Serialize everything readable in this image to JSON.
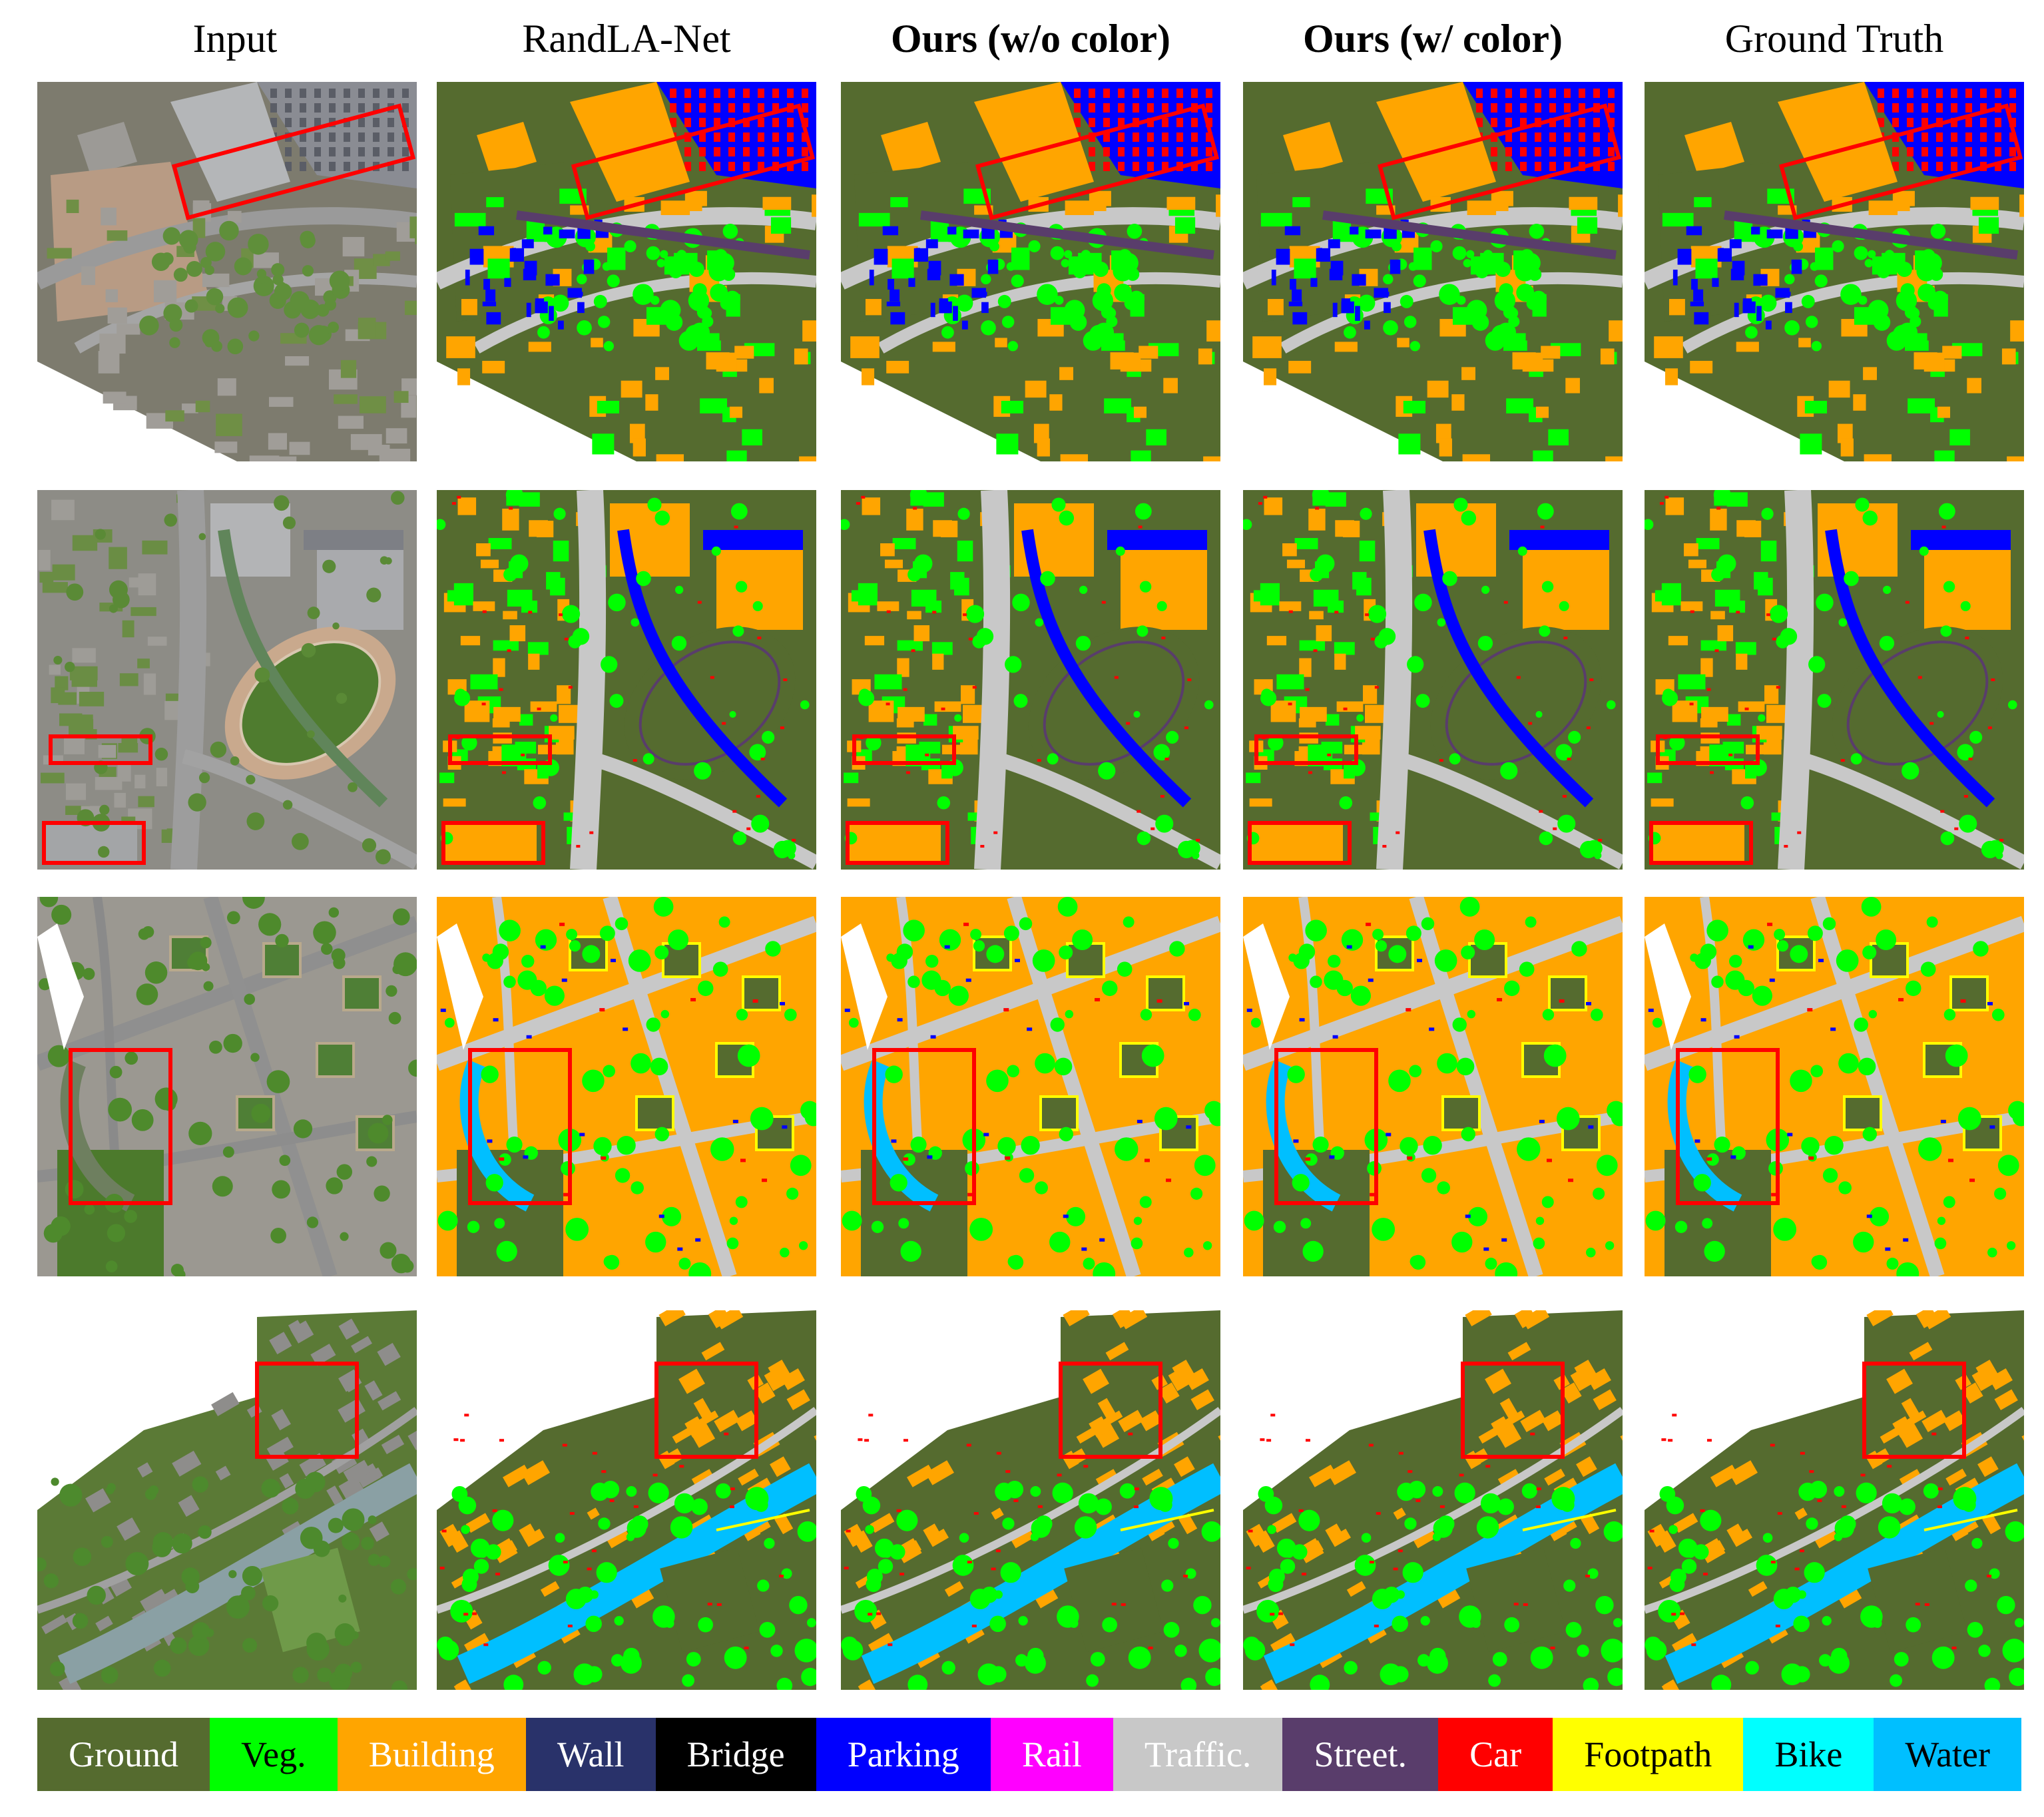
{
  "columns": [
    {
      "label": "Input",
      "bold": false
    },
    {
      "label": "RandLA-Net",
      "bold": false
    },
    {
      "label": "Ours (w/o color)",
      "bold": true
    },
    {
      "label": "Ours (w/ color)",
      "bold": true
    },
    {
      "label": "Ground Truth",
      "bold": false
    }
  ],
  "legend": [
    {
      "label": "Ground",
      "color": "#556b2f",
      "text_color": "#ffffff"
    },
    {
      "label": "Veg.",
      "color": "#00ff00",
      "text_color": "#000000"
    },
    {
      "label": "Building",
      "color": "#ffa500",
      "text_color": "#ffffff"
    },
    {
      "label": "Wall",
      "color": "#29326a",
      "text_color": "#ffffff"
    },
    {
      "label": "Bridge",
      "color": "#000000",
      "text_color": "#ffffff"
    },
    {
      "label": "Parking",
      "color": "#0000ff",
      "text_color": "#ffffff"
    },
    {
      "label": "Rail",
      "color": "#ff00ff",
      "text_color": "#ffffff"
    },
    {
      "label": "Traffic.",
      "color": "#c8c8c8",
      "text_color": "#ffffff"
    },
    {
      "label": "Street.",
      "color": "#593d6b",
      "text_color": "#ffffff"
    },
    {
      "label": "Car",
      "color": "#ff0000",
      "text_color": "#ffffff"
    },
    {
      "label": "Footpath",
      "color": "#ffff00",
      "text_color": "#000000"
    },
    {
      "label": "Bike",
      "color": "#00ffff",
      "text_color": "#000000"
    },
    {
      "label": "Water",
      "color": "#00bfff",
      "text_color": "#000000"
    }
  ]
}
